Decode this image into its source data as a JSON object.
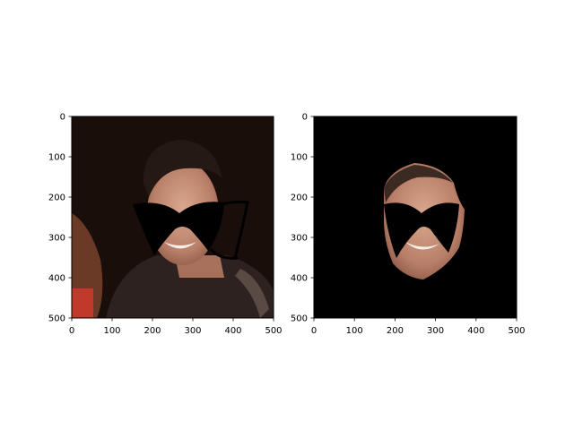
{
  "figure": {
    "background": "#ffffff",
    "tick_color": "#000000"
  },
  "chart_data": [
    {
      "type": "image",
      "title": "",
      "xlabel": "",
      "ylabel": "",
      "image_extent": {
        "width": 500,
        "height": 500
      },
      "xlim": [
        0,
        500
      ],
      "ylim": [
        500,
        0
      ],
      "xticks": [
        0,
        100,
        200,
        300,
        400,
        500
      ],
      "yticks": [
        0,
        100,
        200,
        300,
        400,
        500
      ],
      "image_content": "photo of smiling man with dark hair, dark background, black glasses-shaped mask drawn over eyes",
      "image_colors": {
        "background": "#1a0e0b",
        "skin": "#c79680",
        "hair": "#241914",
        "mask": "#000000"
      }
    },
    {
      "type": "image",
      "title": "",
      "xlabel": "",
      "ylabel": "",
      "image_extent": {
        "width": 500,
        "height": 500
      },
      "xlim": [
        0,
        500
      ],
      "ylim": [
        500,
        0
      ],
      "xticks": [
        0,
        100,
        200,
        300,
        400,
        500
      ],
      "yticks": [
        0,
        100,
        200,
        300,
        400,
        500
      ],
      "image_content": "cropped face region only on black background, same glasses-shaped mask over eyes",
      "image_colors": {
        "background": "#000000",
        "skin": "#c79680",
        "mask": "#000000"
      }
    }
  ]
}
